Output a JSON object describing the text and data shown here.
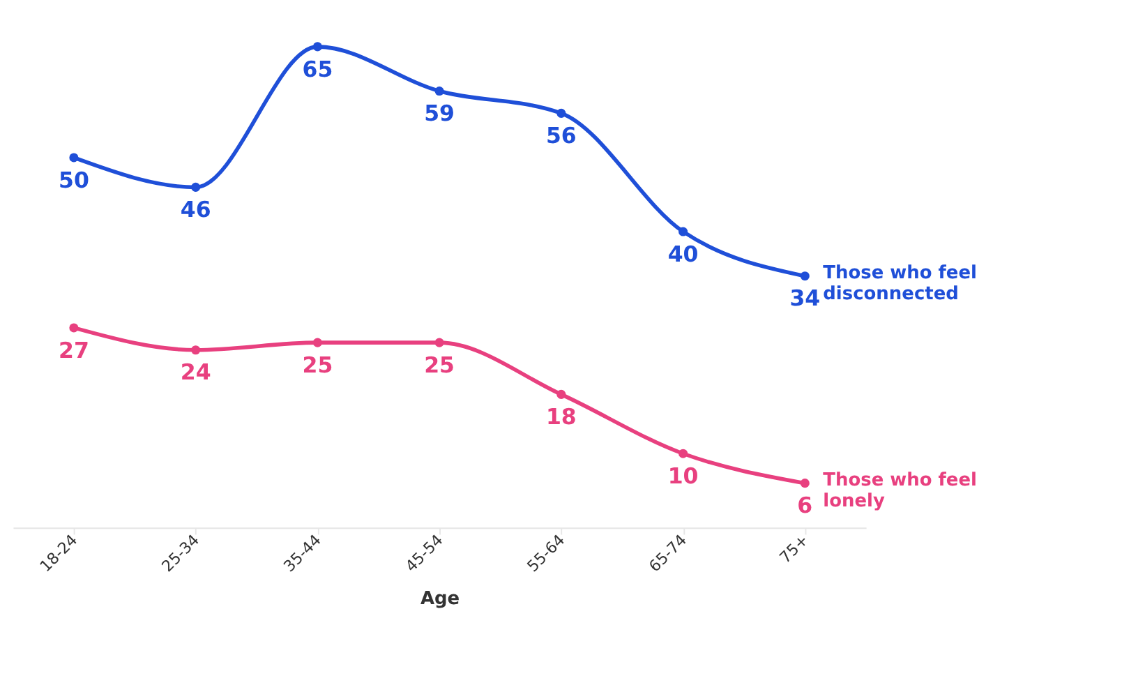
{
  "chart_data": {
    "type": "line",
    "xlabel": "Age",
    "categories": [
      "18-24",
      "25-34",
      "35-44",
      "45-54",
      "55-64",
      "65-74",
      "75+"
    ],
    "series": [
      {
        "name": "Those who feel\ndisconnected",
        "color": "#1f4fd8",
        "values": [
          50,
          46,
          65,
          59,
          56,
          40,
          34
        ]
      },
      {
        "name": "Those who feel\nlonely",
        "color": "#e8407f",
        "values": [
          27,
          24,
          25,
          25,
          18,
          10,
          6
        ]
      }
    ],
    "data_labels": true,
    "marker": "circle",
    "grid": false,
    "tick_labels": "x"
  }
}
